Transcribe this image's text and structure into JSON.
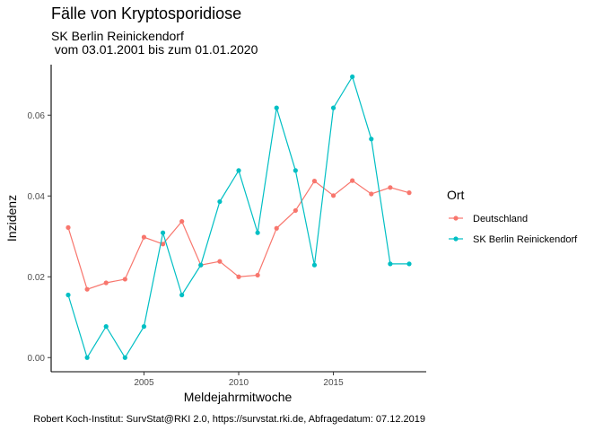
{
  "chart_data": {
    "type": "line",
    "title": "Fälle von Kryptosporidiose",
    "subtitle_line1": "SK Berlin Reinickendorf",
    "subtitle_line2": " vom 03.01.2001 bis zum 01.01.2020",
    "xlabel": "Meldejahrmitwoche",
    "ylabel": "Inzidenz",
    "caption": "Robert Koch-Institut: SurvStat@RKI 2.0, https://survstat.rki.de, Abfragedatum: 07.12.2019",
    "xlim": [
      2000.1,
      2019.9
    ],
    "ylim": [
      -0.0035,
      0.0725
    ],
    "x_ticks": [
      2005,
      2010,
      2015
    ],
    "x_tick_labels": [
      "2005",
      "2010",
      "2015"
    ],
    "y_ticks": [
      0,
      0.02,
      0.04,
      0.06
    ],
    "y_tick_labels": [
      "0.00",
      "0.02",
      "0.04",
      "0.06"
    ],
    "grid": false,
    "legend": {
      "title": "Ort",
      "position": "right"
    },
    "x": [
      2001,
      2002,
      2003,
      2004,
      2005,
      2006,
      2007,
      2008,
      2009,
      2010,
      2011,
      2012,
      2013,
      2014,
      2015,
      2016,
      2017,
      2018,
      2019
    ],
    "series": [
      {
        "name": "Deutschland",
        "color": "#F8766D",
        "values": [
          0.0322,
          0.0169,
          0.0185,
          0.0194,
          0.0298,
          0.0281,
          0.0337,
          0.0229,
          0.0238,
          0.02,
          0.0204,
          0.032,
          0.0364,
          0.0437,
          0.0401,
          0.0438,
          0.0405,
          0.0421,
          0.0408
        ]
      },
      {
        "name": "SK Berlin Reinickendorf",
        "color": "#00BFC4",
        "values": [
          0.0155,
          0.0,
          0.0077,
          0.0,
          0.0077,
          0.0309,
          0.0155,
          0.0229,
          0.0386,
          0.0463,
          0.0309,
          0.0618,
          0.0463,
          0.0229,
          0.0618,
          0.0695,
          0.0541,
          0.0232,
          0.0232
        ]
      }
    ]
  }
}
